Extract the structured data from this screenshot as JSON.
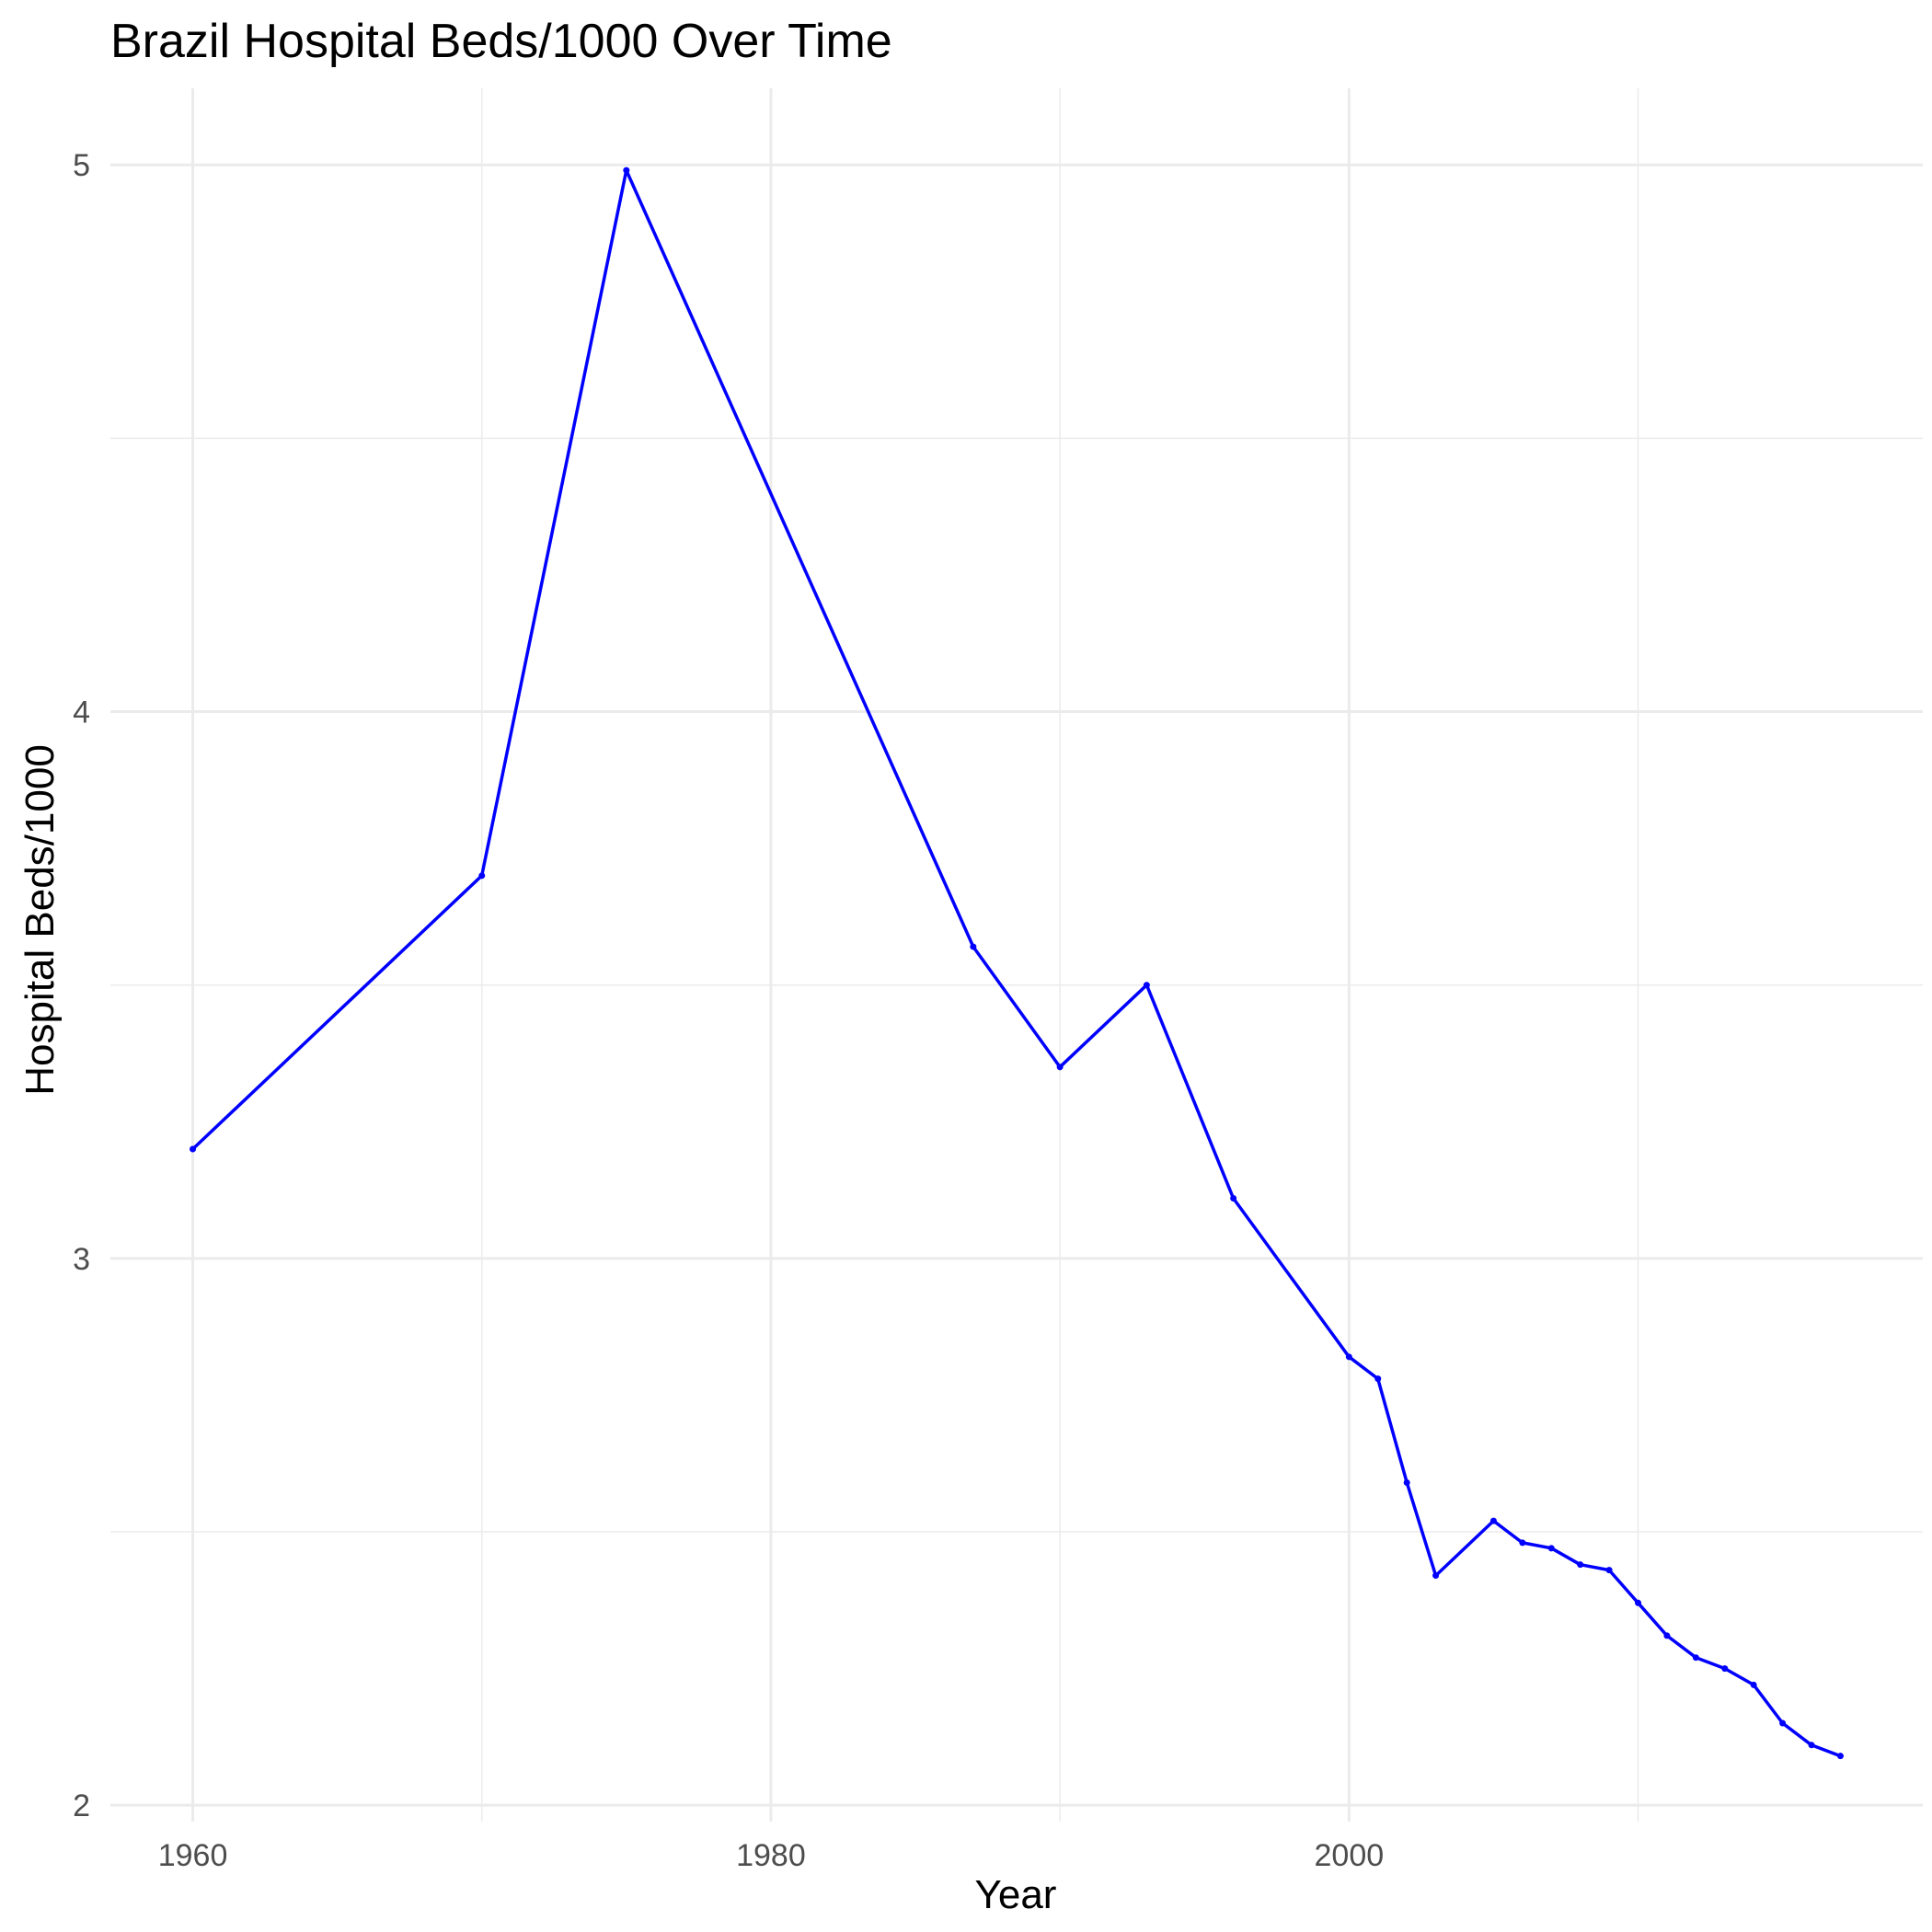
{
  "chart_data": {
    "type": "line",
    "title": "Brazil Hospital Beds/1000 Over Time",
    "xlabel": "Year",
    "ylabel": "Hospital Beds/1000",
    "xlim": [
      1957.15,
      2019.85
    ],
    "ylim": [
      1.97,
      5.14
    ],
    "x_ticks": [
      1960,
      1980,
      2000
    ],
    "y_ticks": [
      2,
      3,
      4,
      5
    ],
    "grid": true,
    "line_color": "#0000ff",
    "series": [
      {
        "x": [
          1960,
          1970,
          1975,
          1987,
          1990,
          1993,
          1996,
          2000,
          2001,
          2002,
          2003,
          2005,
          2006,
          2007,
          2008,
          2009,
          2010,
          2011,
          2012,
          2013,
          2014,
          2015,
          2016,
          2017
        ],
        "y": [
          3.2,
          3.7,
          4.99,
          3.57,
          3.35,
          3.5,
          3.11,
          2.82,
          2.78,
          2.59,
          2.42,
          2.52,
          2.48,
          2.47,
          2.44,
          2.43,
          2.37,
          2.31,
          2.27,
          2.25,
          2.22,
          2.15,
          2.11,
          2.09
        ]
      }
    ]
  }
}
